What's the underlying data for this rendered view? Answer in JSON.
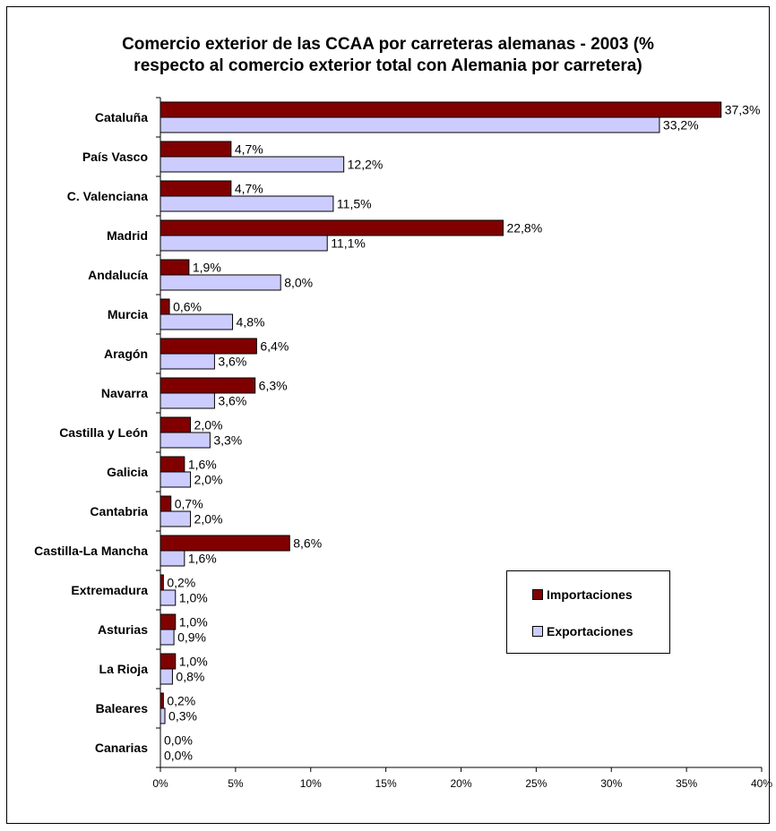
{
  "chart_data": {
    "type": "bar",
    "orientation": "horizontal",
    "title": "Comercio exterior de las CCAA por carreteras alemanas - 2003 (% respecto al comercio exterior total con Alemania por carretera)",
    "title_lines": [
      "Comercio exterior de las CCAA por carreteras alemanas - 2003 (%",
      "respecto al comercio exterior total con Alemania por carretera)"
    ],
    "categories": [
      "Cataluña",
      "País Vasco",
      "C. Valenciana",
      "Madrid",
      "Andalucía",
      "Murcia",
      "Aragón",
      "Navarra",
      "Castilla y León",
      "Galicia",
      "Cantabria",
      "Castilla-La Mancha",
      "Extremadura",
      "Asturias",
      "La Rioja",
      "Baleares",
      "Canarias"
    ],
    "series": [
      {
        "name": "Importaciones",
        "color": "#800000",
        "values": [
          37.3,
          4.7,
          4.7,
          22.8,
          1.9,
          0.6,
          6.4,
          6.3,
          2.0,
          1.6,
          0.7,
          8.6,
          0.2,
          1.0,
          1.0,
          0.2,
          0.0
        ],
        "labels": [
          "37,3%",
          "4,7%",
          "4,7%",
          "22,8%",
          "1,9%",
          "0,6%",
          "6,4%",
          "6,3%",
          "2,0%",
          "1,6%",
          "0,7%",
          "8,6%",
          "0,2%",
          "1,0%",
          "1,0%",
          "0,2%",
          "0,0%"
        ]
      },
      {
        "name": "Exportaciones",
        "color": "#ccccff",
        "values": [
          33.2,
          12.2,
          11.5,
          11.1,
          8.0,
          4.8,
          3.6,
          3.6,
          3.3,
          2.0,
          2.0,
          1.6,
          1.0,
          0.9,
          0.8,
          0.3,
          0.0
        ],
        "labels": [
          "33,2%",
          "12,2%",
          "11,5%",
          "11,1%",
          "8,0%",
          "4,8%",
          "3,6%",
          "3,6%",
          "3,3%",
          "2,0%",
          "2,0%",
          "1,6%",
          "1,0%",
          "0,9%",
          "0,8%",
          "0,3%",
          "0,0%"
        ]
      }
    ],
    "xlim": [
      0,
      40
    ],
    "xticks": [
      0,
      5,
      10,
      15,
      20,
      25,
      30,
      35,
      40
    ],
    "xtick_labels": [
      "0%",
      "5%",
      "10%",
      "15%",
      "20%",
      "25%",
      "30%",
      "35%",
      "40%"
    ],
    "xlabel": "",
    "ylabel": "",
    "grid": false,
    "legend_position": "right"
  }
}
